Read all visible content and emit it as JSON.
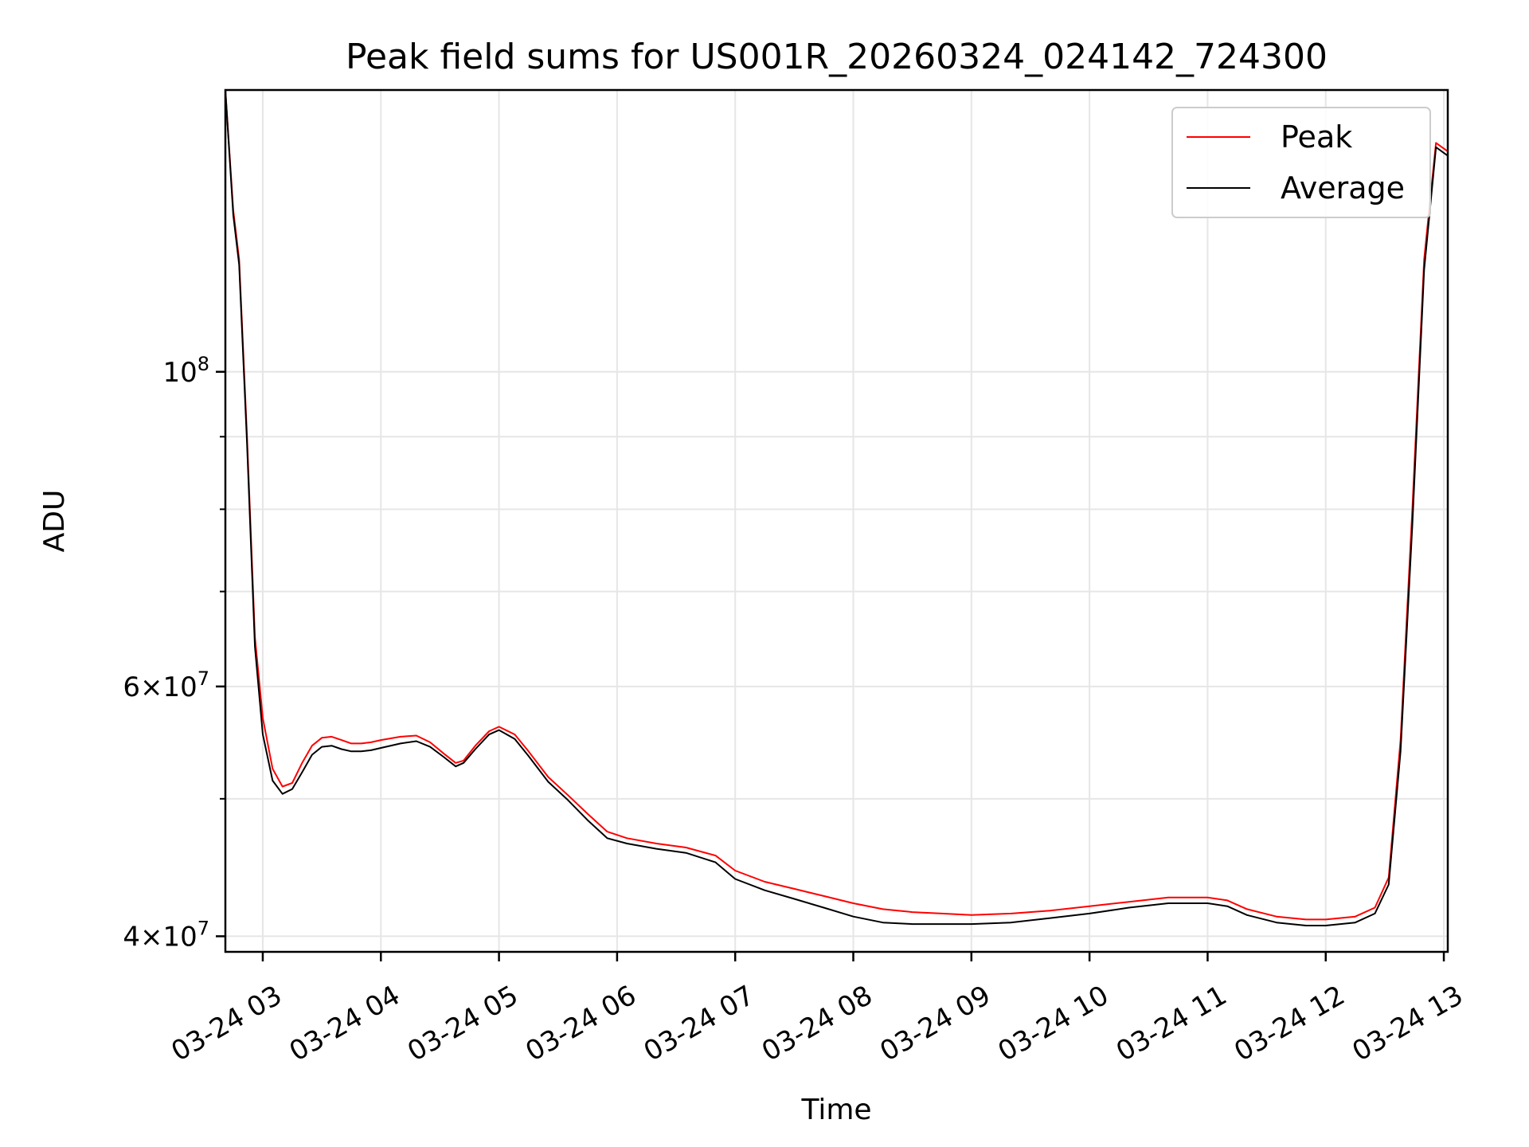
{
  "chart_data": {
    "type": "line",
    "title": "Peak field sums for US001R_20260324_024142_724300",
    "xlabel": "Time",
    "ylabel": "ADU",
    "yscale": "log",
    "ylim": [
      39000000,
      158000000
    ],
    "xlim": [
      "2026-03-24 02:41",
      "2026-03-24 13:02"
    ],
    "grid": true,
    "legend_position": "top-right",
    "x_ticks": [
      {
        "t": "2026-03-24 03:00",
        "label": "03-24 03"
      },
      {
        "t": "2026-03-24 04:00",
        "label": "03-24 04"
      },
      {
        "t": "2026-03-24 05:00",
        "label": "03-24 05"
      },
      {
        "t": "2026-03-24 06:00",
        "label": "03-24 06"
      },
      {
        "t": "2026-03-24 07:00",
        "label": "03-24 07"
      },
      {
        "t": "2026-03-24 08:00",
        "label": "03-24 08"
      },
      {
        "t": "2026-03-24 09:00",
        "label": "03-24 09"
      },
      {
        "t": "2026-03-24 10:00",
        "label": "03-24 10"
      },
      {
        "t": "2026-03-24 11:00",
        "label": "03-24 11"
      },
      {
        "t": "2026-03-24 12:00",
        "label": "03-24 12"
      },
      {
        "t": "2026-03-24 13:00",
        "label": "03-24 13"
      }
    ],
    "y_ticks": [
      {
        "value": 40000000,
        "base": "4×10",
        "exp": "7"
      },
      {
        "value": 60000000,
        "base": "6×10",
        "exp": "7"
      },
      {
        "value": 100000000,
        "base": "10",
        "exp": "8"
      }
    ],
    "y_minor_ticks": [
      50000000,
      70000000,
      80000000,
      90000000
    ],
    "series": [
      {
        "name": "Peak",
        "color": "#ff0000",
        "points": [
          [
            "2026-03-24 02:41",
            158000000
          ],
          [
            "2026-03-24 02:45",
            130000000
          ],
          [
            "2026-03-24 02:48",
            120000000
          ],
          [
            "2026-03-24 02:52",
            90000000
          ],
          [
            "2026-03-24 02:56",
            65000000
          ],
          [
            "2026-03-24 03:00",
            57000000
          ],
          [
            "2026-03-24 03:05",
            52500000
          ],
          [
            "2026-03-24 03:10",
            51000000
          ],
          [
            "2026-03-24 03:15",
            51300000
          ],
          [
            "2026-03-24 03:20",
            53000000
          ],
          [
            "2026-03-24 03:25",
            54500000
          ],
          [
            "2026-03-24 03:30",
            55200000
          ],
          [
            "2026-03-24 03:35",
            55300000
          ],
          [
            "2026-03-24 03:40",
            55000000
          ],
          [
            "2026-03-24 03:45",
            54700000
          ],
          [
            "2026-03-24 03:50",
            54700000
          ],
          [
            "2026-03-24 03:55",
            54800000
          ],
          [
            "2026-03-24 04:00",
            55000000
          ],
          [
            "2026-03-24 04:10",
            55300000
          ],
          [
            "2026-03-24 04:18",
            55400000
          ],
          [
            "2026-03-24 04:25",
            54800000
          ],
          [
            "2026-03-24 04:32",
            53800000
          ],
          [
            "2026-03-24 04:38",
            53000000
          ],
          [
            "2026-03-24 04:42",
            53200000
          ],
          [
            "2026-03-24 04:48",
            54500000
          ],
          [
            "2026-03-24 04:55",
            55800000
          ],
          [
            "2026-03-24 05:00",
            56200000
          ],
          [
            "2026-03-24 05:08",
            55500000
          ],
          [
            "2026-03-24 05:15",
            54000000
          ],
          [
            "2026-03-24 05:25",
            51800000
          ],
          [
            "2026-03-24 05:35",
            50300000
          ],
          [
            "2026-03-24 05:45",
            48800000
          ],
          [
            "2026-03-24 05:55",
            47400000
          ],
          [
            "2026-03-24 06:05",
            46900000
          ],
          [
            "2026-03-24 06:20",
            46500000
          ],
          [
            "2026-03-24 06:35",
            46200000
          ],
          [
            "2026-03-24 06:50",
            45600000
          ],
          [
            "2026-03-24 07:00",
            44500000
          ],
          [
            "2026-03-24 07:15",
            43700000
          ],
          [
            "2026-03-24 07:30",
            43200000
          ],
          [
            "2026-03-24 07:45",
            42700000
          ],
          [
            "2026-03-24 08:00",
            42200000
          ],
          [
            "2026-03-24 08:15",
            41800000
          ],
          [
            "2026-03-24 08:30",
            41600000
          ],
          [
            "2026-03-24 08:45",
            41500000
          ],
          [
            "2026-03-24 09:00",
            41400000
          ],
          [
            "2026-03-24 09:20",
            41500000
          ],
          [
            "2026-03-24 09:40",
            41700000
          ],
          [
            "2026-03-24 10:00",
            42000000
          ],
          [
            "2026-03-24 10:20",
            42300000
          ],
          [
            "2026-03-24 10:40",
            42600000
          ],
          [
            "2026-03-24 11:00",
            42600000
          ],
          [
            "2026-03-24 11:10",
            42400000
          ],
          [
            "2026-03-24 11:20",
            41800000
          ],
          [
            "2026-03-24 11:35",
            41300000
          ],
          [
            "2026-03-24 11:50",
            41100000
          ],
          [
            "2026-03-24 12:00",
            41100000
          ],
          [
            "2026-03-24 12:15",
            41300000
          ],
          [
            "2026-03-24 12:25",
            41900000
          ],
          [
            "2026-03-24 12:32",
            44000000
          ],
          [
            "2026-03-24 12:38",
            55000000
          ],
          [
            "2026-03-24 12:44",
            80000000
          ],
          [
            "2026-03-24 12:50",
            120000000
          ],
          [
            "2026-03-24 12:56",
            145000000
          ],
          [
            "2026-03-24 13:02",
            143000000
          ]
        ]
      },
      {
        "name": "Average",
        "color": "#000000",
        "points": [
          [
            "2026-03-24 02:41",
            158000000
          ],
          [
            "2026-03-24 02:45",
            129000000
          ],
          [
            "2026-03-24 02:48",
            119000000
          ],
          [
            "2026-03-24 02:52",
            89000000
          ],
          [
            "2026-03-24 02:56",
            64000000
          ],
          [
            "2026-03-24 03:00",
            55500000
          ],
          [
            "2026-03-24 03:05",
            51500000
          ],
          [
            "2026-03-24 03:10",
            50400000
          ],
          [
            "2026-03-24 03:15",
            50800000
          ],
          [
            "2026-03-24 03:20",
            52200000
          ],
          [
            "2026-03-24 03:25",
            53700000
          ],
          [
            "2026-03-24 03:30",
            54400000
          ],
          [
            "2026-03-24 03:35",
            54500000
          ],
          [
            "2026-03-24 03:40",
            54200000
          ],
          [
            "2026-03-24 03:45",
            54000000
          ],
          [
            "2026-03-24 03:50",
            54000000
          ],
          [
            "2026-03-24 03:55",
            54100000
          ],
          [
            "2026-03-24 04:00",
            54300000
          ],
          [
            "2026-03-24 04:10",
            54700000
          ],
          [
            "2026-03-24 04:18",
            54900000
          ],
          [
            "2026-03-24 04:25",
            54400000
          ],
          [
            "2026-03-24 04:32",
            53500000
          ],
          [
            "2026-03-24 04:38",
            52700000
          ],
          [
            "2026-03-24 04:42",
            53000000
          ],
          [
            "2026-03-24 04:48",
            54200000
          ],
          [
            "2026-03-24 04:55",
            55500000
          ],
          [
            "2026-03-24 05:00",
            55900000
          ],
          [
            "2026-03-24 05:08",
            55100000
          ],
          [
            "2026-03-24 05:15",
            53600000
          ],
          [
            "2026-03-24 05:25",
            51400000
          ],
          [
            "2026-03-24 05:35",
            49900000
          ],
          [
            "2026-03-24 05:45",
            48300000
          ],
          [
            "2026-03-24 05:55",
            46900000
          ],
          [
            "2026-03-24 06:05",
            46500000
          ],
          [
            "2026-03-24 06:20",
            46100000
          ],
          [
            "2026-03-24 06:35",
            45800000
          ],
          [
            "2026-03-24 06:50",
            45100000
          ],
          [
            "2026-03-24 07:00",
            43900000
          ],
          [
            "2026-03-24 07:15",
            43100000
          ],
          [
            "2026-03-24 07:30",
            42500000
          ],
          [
            "2026-03-24 07:45",
            41900000
          ],
          [
            "2026-03-24 08:00",
            41300000
          ],
          [
            "2026-03-24 08:15",
            40900000
          ],
          [
            "2026-03-24 08:30",
            40800000
          ],
          [
            "2026-03-24 08:45",
            40800000
          ],
          [
            "2026-03-24 09:00",
            40800000
          ],
          [
            "2026-03-24 09:20",
            40900000
          ],
          [
            "2026-03-24 09:40",
            41200000
          ],
          [
            "2026-03-24 10:00",
            41500000
          ],
          [
            "2026-03-24 10:20",
            41900000
          ],
          [
            "2026-03-24 10:40",
            42200000
          ],
          [
            "2026-03-24 11:00",
            42200000
          ],
          [
            "2026-03-24 11:10",
            42000000
          ],
          [
            "2026-03-24 11:20",
            41400000
          ],
          [
            "2026-03-24 11:35",
            40900000
          ],
          [
            "2026-03-24 11:50",
            40700000
          ],
          [
            "2026-03-24 12:00",
            40700000
          ],
          [
            "2026-03-24 12:15",
            40900000
          ],
          [
            "2026-03-24 12:25",
            41500000
          ],
          [
            "2026-03-24 12:32",
            43500000
          ],
          [
            "2026-03-24 12:38",
            54000000
          ],
          [
            "2026-03-24 12:44",
            78000000
          ],
          [
            "2026-03-24 12:50",
            118000000
          ],
          [
            "2026-03-24 12:56",
            144000000
          ],
          [
            "2026-03-24 13:02",
            142000000
          ]
        ]
      }
    ]
  }
}
